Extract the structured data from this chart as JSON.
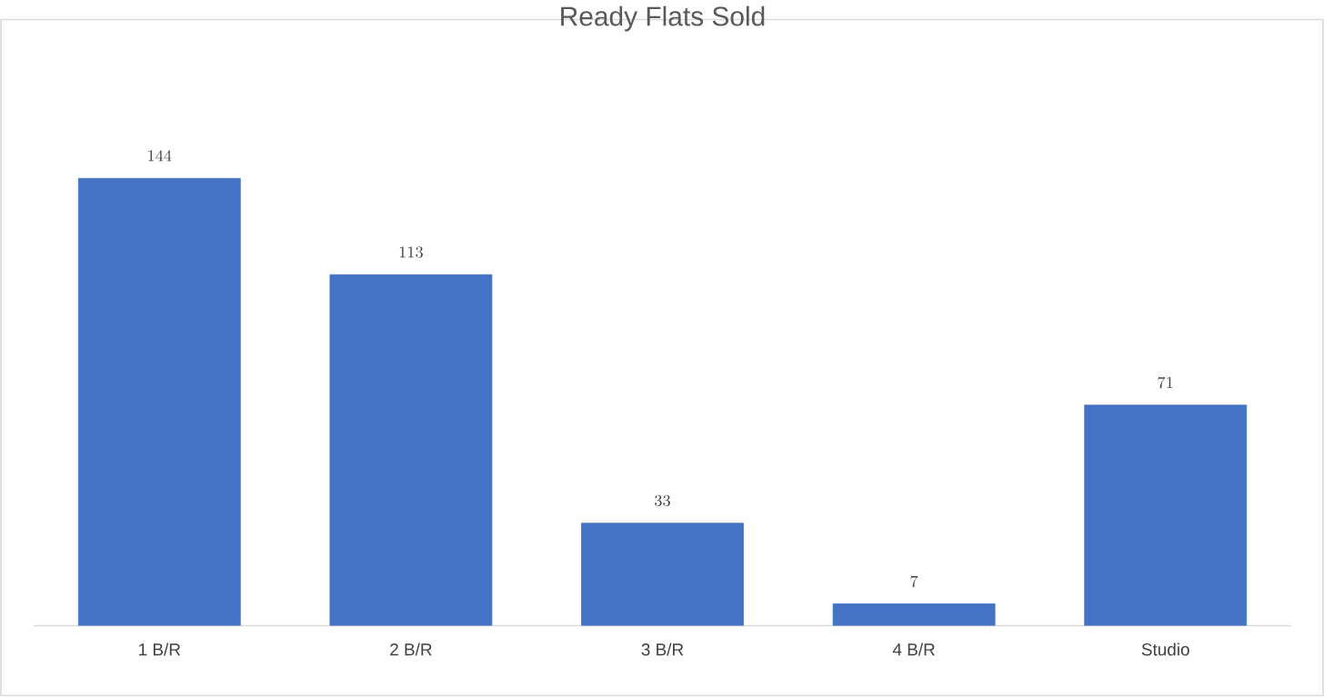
{
  "chart_data": {
    "type": "bar",
    "title": "Ready Flats Sold",
    "categories": [
      "1 B/R",
      "2 B/R",
      "3 B/R",
      "4 B/R",
      "Studio"
    ],
    "values": [
      144,
      113,
      33,
      7,
      71
    ],
    "color": "#4472c4",
    "data_labels": true
  }
}
